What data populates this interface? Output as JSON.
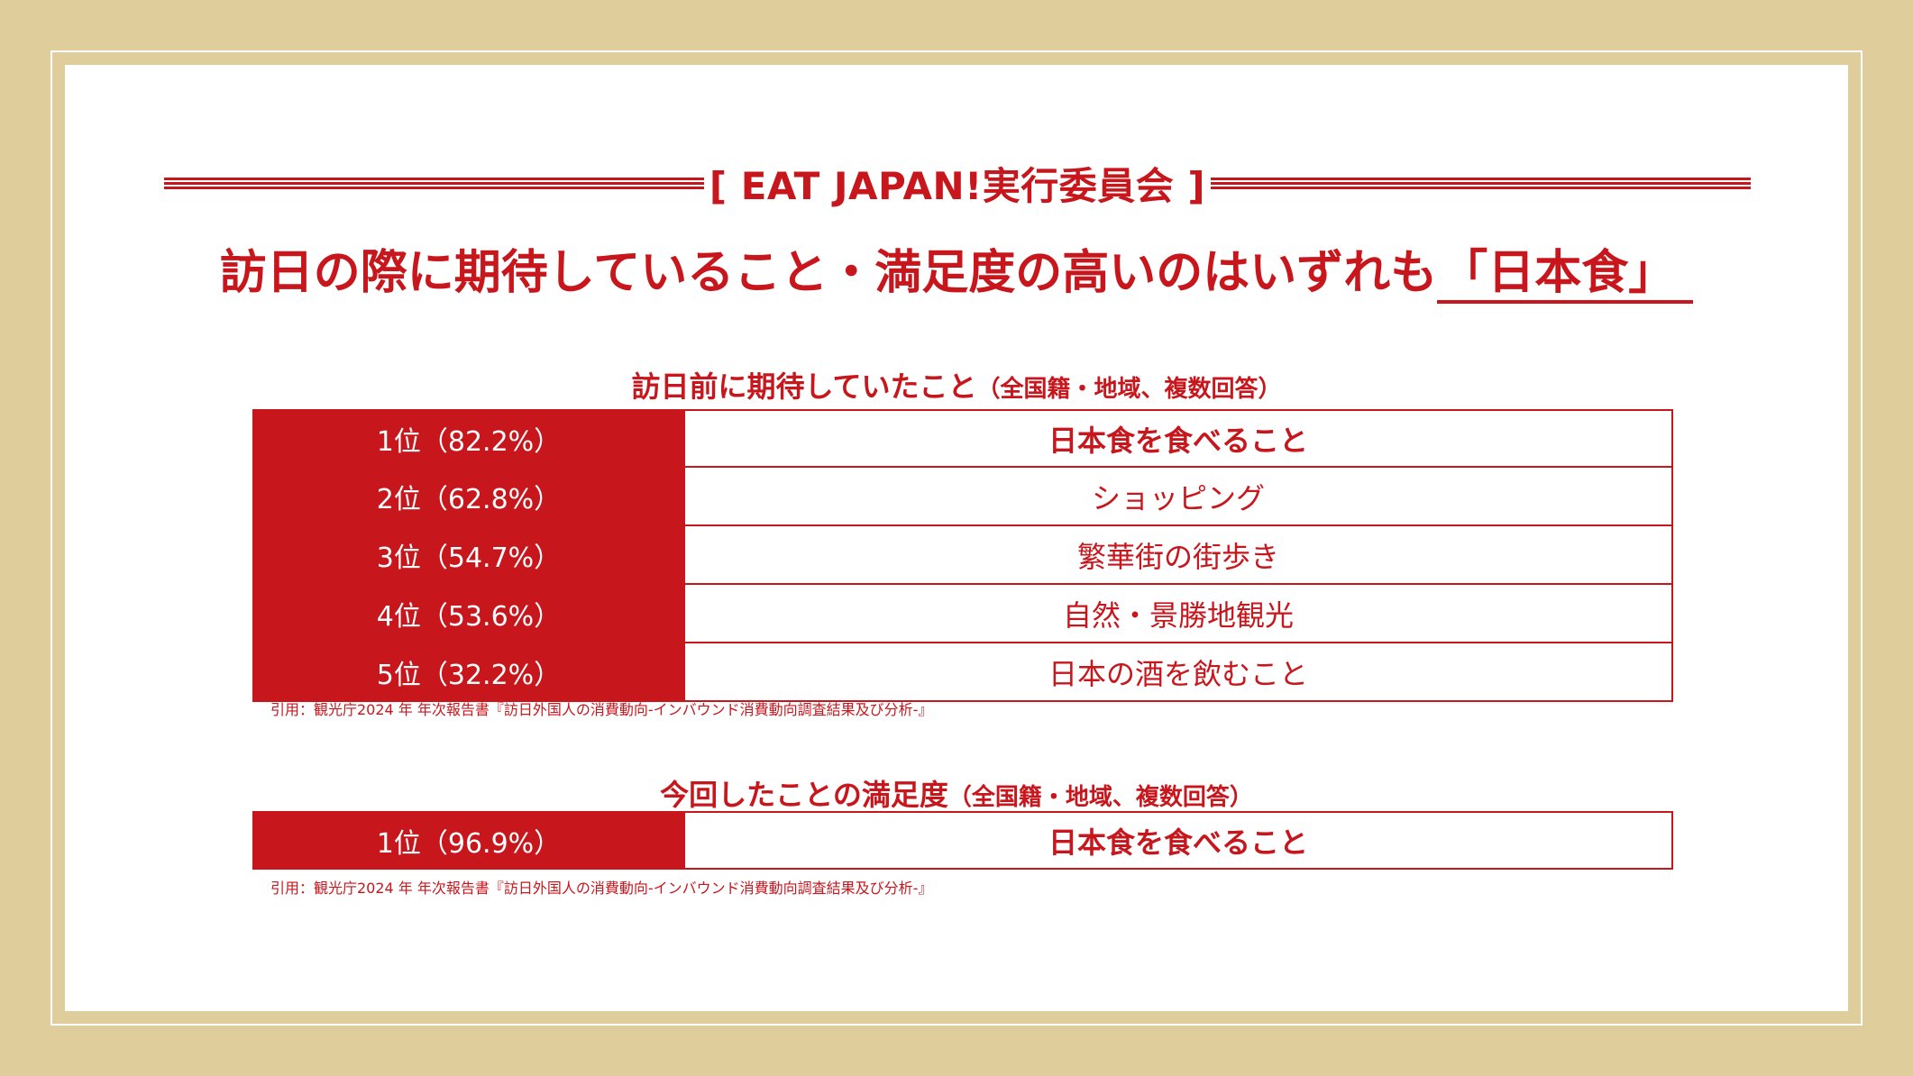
{
  "header": {
    "org": "[ EAT JAPAN!実行委員会 ]"
  },
  "headline": {
    "text": "訪日の際に期待していること・満足度の高いのはいずれも",
    "highlight": "「日本食」"
  },
  "expectations": {
    "title": "訪日前に期待していたこと",
    "title_note": "（全国籍・地域、複数回答）",
    "rows": [
      {
        "rank": "1位（82.2%）",
        "item": "日本食を食べること"
      },
      {
        "rank": "2位（62.8%）",
        "item": "ショッピング"
      },
      {
        "rank": "3位（54.7%）",
        "item": "繁華街の街歩き"
      },
      {
        "rank": "4位（53.6%）",
        "item": "自然・景勝地観光"
      },
      {
        "rank": "5位（32.2%）",
        "item": "日本の酒を飲むこと"
      }
    ],
    "source": "引用：観光庁2024 年 年次報告書『訪日外国人の消費動向-インバウンド消費動向調査結果及び分析-』"
  },
  "satisfaction": {
    "title": "今回したことの満足度",
    "title_note": "（全国籍・地域、複数回答）",
    "rows": [
      {
        "rank": "1位（96.9%）",
        "item": "日本食を食べること"
      }
    ],
    "source": "引用：観光庁2024 年 年次報告書『訪日外国人の消費動向-インバウンド消費動向調査結果及び分析-』"
  }
}
